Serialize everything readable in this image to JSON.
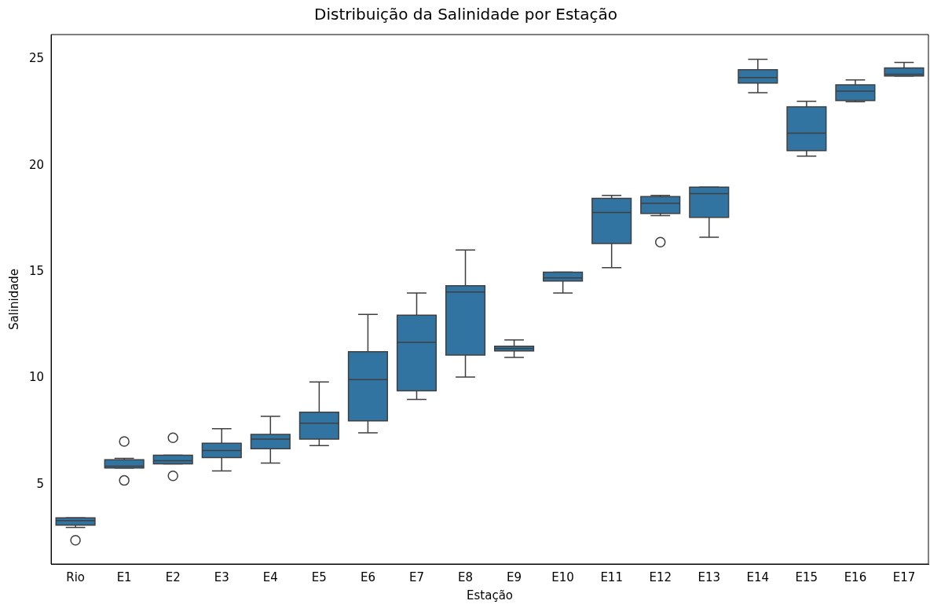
{
  "chart_data": {
    "type": "box",
    "title": "Distribuição da Salinidade por Estação",
    "xlabel": "Estação",
    "ylabel": "Salinidade",
    "color": "#3274a1",
    "categories": [
      "Rio",
      "E1",
      "E2",
      "E3",
      "E4",
      "E5",
      "E6",
      "E7",
      "E8",
      "E9",
      "E10",
      "E11",
      "E12",
      "E13",
      "E14",
      "E15",
      "E16",
      "E17"
    ],
    "boxes": [
      {
        "low": 2.98,
        "q1": 3.09,
        "median": 3.3,
        "q3": 3.43,
        "high": 3.43,
        "outliers": [
          2.38
        ]
      },
      {
        "low": 5.78,
        "q1": 5.78,
        "median": 5.86,
        "q3": 6.16,
        "high": 6.23,
        "outliers": [
          7.02,
          5.19
        ]
      },
      {
        "low": 5.97,
        "q1": 5.97,
        "median": 6.12,
        "q3": 6.38,
        "high": 6.38,
        "outliers": [
          7.2,
          5.41
        ]
      },
      {
        "low": 5.64,
        "q1": 6.27,
        "median": 6.6,
        "q3": 6.94,
        "high": 7.62
      },
      {
        "low": 6.01,
        "q1": 6.68,
        "median": 7.13,
        "q3": 7.36,
        "high": 8.21
      },
      {
        "low": 6.83,
        "q1": 7.13,
        "median": 7.88,
        "q3": 8.4,
        "high": 9.82
      },
      {
        "low": 7.43,
        "q1": 7.99,
        "median": 9.93,
        "q3": 11.24,
        "high": 13.0
      },
      {
        "low": 9.0,
        "q1": 9.41,
        "median": 11.69,
        "q3": 12.96,
        "high": 14.01
      },
      {
        "low": 10.05,
        "q1": 11.09,
        "median": 14.05,
        "q3": 14.35,
        "high": 16.03
      },
      {
        "low": 10.98,
        "q1": 11.28,
        "median": 11.39,
        "q3": 11.5,
        "high": 11.8
      },
      {
        "low": 14.01,
        "q1": 14.57,
        "median": 14.72,
        "q3": 14.98,
        "high": 14.98
      },
      {
        "low": 15.2,
        "q1": 16.33,
        "median": 17.79,
        "q3": 18.46,
        "high": 18.6
      },
      {
        "low": 17.64,
        "q1": 17.75,
        "median": 18.23,
        "q3": 18.54,
        "high": 18.6,
        "outliers": [
          16.4
        ]
      },
      {
        "low": 16.63,
        "q1": 17.56,
        "median": 18.68,
        "q3": 18.98,
        "high": 18.98
      },
      {
        "low": 23.43,
        "q1": 23.88,
        "median": 24.14,
        "q3": 24.51,
        "high": 25.0
      },
      {
        "low": 20.44,
        "q1": 20.7,
        "median": 21.52,
        "q3": 22.76,
        "high": 23.02
      },
      {
        "low": 23.0,
        "q1": 23.06,
        "median": 23.5,
        "q3": 23.8,
        "high": 24.03
      },
      {
        "low": 24.21,
        "q1": 24.21,
        "median": 24.29,
        "q3": 24.59,
        "high": 24.85
      }
    ],
    "ylim": [
      1.26,
      26.16
    ],
    "yticks": [
      5,
      10,
      15,
      20,
      25
    ]
  }
}
